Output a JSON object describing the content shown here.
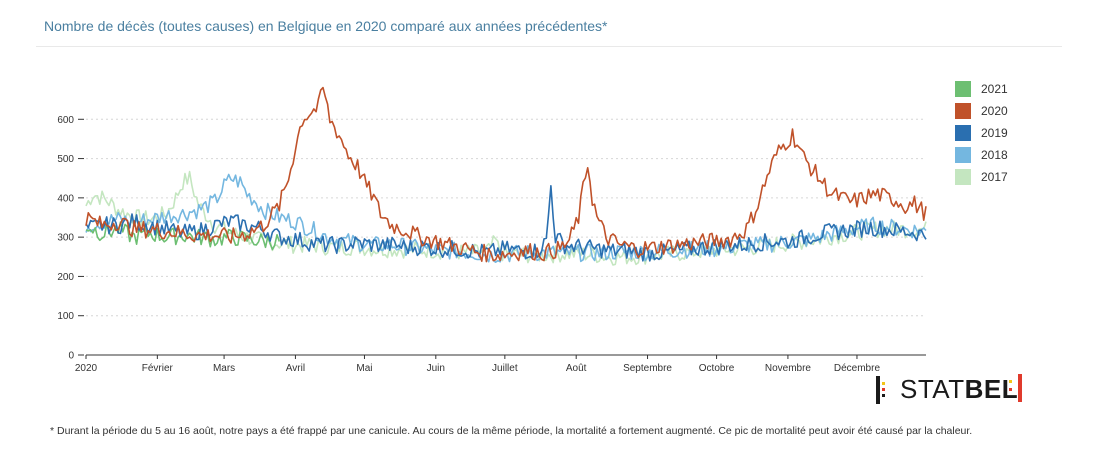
{
  "title": "Nombre de décès (toutes causes) en Belgique en 2020 comparé aux années précédentes*",
  "footnote": "* Durant la période du 5 au 16 août, notre pays a été frappé par une canicule. Au cours de la même période, la mortalité a fortement augmenté. Ce pic de mortalité peut avoir été causé par la chaleur.",
  "logo": {
    "light": "STAT",
    "bold": "BEL"
  },
  "chart_data": {
    "type": "line",
    "title": "Nombre de décès (toutes causes) en Belgique en 2020 comparé aux années précédentes*",
    "xlabel": "",
    "ylabel": "",
    "ylim": [
      0,
      700
    ],
    "y_ticks": [
      0,
      100,
      200,
      300,
      400,
      500,
      600
    ],
    "x_ticks": [
      {
        "label": "2020",
        "day": 0
      },
      {
        "label": "Février",
        "day": 31
      },
      {
        "label": "Mars",
        "day": 60
      },
      {
        "label": "Avril",
        "day": 91
      },
      {
        "label": "Mai",
        "day": 121
      },
      {
        "label": "Juin",
        "day": 152
      },
      {
        "label": "Juillet",
        "day": 182
      },
      {
        "label": "Août",
        "day": 213
      },
      {
        "label": "Septembre",
        "day": 244
      },
      {
        "label": "Octobre",
        "day": 274
      },
      {
        "label": "Novembre",
        "day": 305
      },
      {
        "label": "Décembre",
        "day": 335
      }
    ],
    "legend_position": "right",
    "grid": "horizontal dotted",
    "series": [
      {
        "name": "2021",
        "color": "#6dbf72",
        "points": [
          [
            0,
            330
          ],
          [
            7,
            310
          ],
          [
            14,
            320
          ],
          [
            21,
            300
          ],
          [
            28,
            310
          ],
          [
            35,
            300
          ],
          [
            42,
            305
          ],
          [
            49,
            300
          ],
          [
            56,
            295
          ],
          [
            63,
            300
          ],
          [
            70,
            295
          ],
          [
            77,
            290
          ],
          [
            84,
            290
          ]
        ]
      },
      {
        "name": "2020",
        "color": "#c0522a",
        "points": [
          [
            0,
            350
          ],
          [
            7,
            330
          ],
          [
            14,
            340
          ],
          [
            21,
            320
          ],
          [
            28,
            320
          ],
          [
            35,
            315
          ],
          [
            42,
            310
          ],
          [
            49,
            305
          ],
          [
            56,
            305
          ],
          [
            63,
            300
          ],
          [
            70,
            310
          ],
          [
            77,
            330
          ],
          [
            84,
            380
          ],
          [
            88,
            450
          ],
          [
            91,
            530
          ],
          [
            94,
            600
          ],
          [
            98,
            620
          ],
          [
            101,
            630
          ],
          [
            103,
            680
          ],
          [
            106,
            600
          ],
          [
            110,
            560
          ],
          [
            114,
            510
          ],
          [
            118,
            480
          ],
          [
            121,
            440
          ],
          [
            125,
            400
          ],
          [
            128,
            360
          ],
          [
            133,
            330
          ],
          [
            140,
            315
          ],
          [
            145,
            300
          ],
          [
            152,
            290
          ],
          [
            158,
            280
          ],
          [
            165,
            270
          ],
          [
            172,
            260
          ],
          [
            178,
            255
          ],
          [
            185,
            260
          ],
          [
            192,
            265
          ],
          [
            199,
            260
          ],
          [
            206,
            270
          ],
          [
            210,
            290
          ],
          [
            214,
            350
          ],
          [
            216,
            420
          ],
          [
            218,
            490
          ],
          [
            220,
            400
          ],
          [
            222,
            350
          ],
          [
            226,
            300
          ],
          [
            232,
            280
          ],
          [
            240,
            270
          ],
          [
            248,
            275
          ],
          [
            256,
            280
          ],
          [
            264,
            285
          ],
          [
            272,
            290
          ],
          [
            280,
            295
          ],
          [
            287,
            320
          ],
          [
            291,
            370
          ],
          [
            294,
            420
          ],
          [
            297,
            470
          ],
          [
            300,
            510
          ],
          [
            304,
            540
          ],
          [
            307,
            560
          ],
          [
            309,
            540
          ],
          [
            312,
            500
          ],
          [
            316,
            470
          ],
          [
            320,
            440
          ],
          [
            324,
            410
          ],
          [
            328,
            400
          ],
          [
            332,
            390
          ],
          [
            336,
            395
          ],
          [
            340,
            405
          ],
          [
            344,
            410
          ],
          [
            348,
            400
          ],
          [
            352,
            395
          ],
          [
            356,
            380
          ],
          [
            360,
            385
          ],
          [
            365,
            360
          ]
        ]
      },
      {
        "name": "2019",
        "color": "#2a6fb0",
        "points": [
          [
            0,
            320
          ],
          [
            7,
            330
          ],
          [
            14,
            330
          ],
          [
            21,
            340
          ],
          [
            28,
            330
          ],
          [
            35,
            320
          ],
          [
            42,
            310
          ],
          [
            49,
            315
          ],
          [
            56,
            330
          ],
          [
            63,
            340
          ],
          [
            70,
            330
          ],
          [
            77,
            320
          ],
          [
            84,
            300
          ],
          [
            91,
            295
          ],
          [
            98,
            285
          ],
          [
            105,
            280
          ],
          [
            112,
            280
          ],
          [
            119,
            285
          ],
          [
            126,
            280
          ],
          [
            133,
            280
          ],
          [
            140,
            275
          ],
          [
            147,
            275
          ],
          [
            154,
            270
          ],
          [
            161,
            270
          ],
          [
            168,
            265
          ],
          [
            175,
            260
          ],
          [
            182,
            270
          ],
          [
            189,
            265
          ],
          [
            196,
            265
          ],
          [
            200,
            290
          ],
          [
            202,
            430
          ],
          [
            204,
            300
          ],
          [
            208,
            280
          ],
          [
            215,
            275
          ],
          [
            222,
            270
          ],
          [
            229,
            265
          ],
          [
            236,
            265
          ],
          [
            243,
            260
          ],
          [
            250,
            260
          ],
          [
            257,
            265
          ],
          [
            264,
            270
          ],
          [
            271,
            275
          ],
          [
            278,
            280
          ],
          [
            285,
            280
          ],
          [
            292,
            285
          ],
          [
            299,
            290
          ],
          [
            306,
            290
          ],
          [
            313,
            300
          ],
          [
            320,
            310
          ],
          [
            327,
            315
          ],
          [
            334,
            320
          ],
          [
            341,
            325
          ],
          [
            348,
            320
          ],
          [
            355,
            315
          ],
          [
            362,
            310
          ],
          [
            365,
            305
          ]
        ]
      },
      {
        "name": "2018",
        "color": "#74b7e0",
        "points": [
          [
            0,
            330
          ],
          [
            7,
            340
          ],
          [
            14,
            345
          ],
          [
            21,
            340
          ],
          [
            28,
            345
          ],
          [
            35,
            355
          ],
          [
            42,
            360
          ],
          [
            49,
            370
          ],
          [
            56,
            390
          ],
          [
            60,
            430
          ],
          [
            63,
            450
          ],
          [
            67,
            440
          ],
          [
            70,
            410
          ],
          [
            74,
            390
          ],
          [
            77,
            370
          ],
          [
            84,
            350
          ],
          [
            91,
            340
          ],
          [
            98,
            320
          ],
          [
            105,
            300
          ],
          [
            112,
            290
          ],
          [
            119,
            285
          ],
          [
            126,
            280
          ],
          [
            133,
            280
          ],
          [
            140,
            275
          ],
          [
            147,
            270
          ],
          [
            154,
            265
          ],
          [
            161,
            265
          ],
          [
            168,
            260
          ],
          [
            175,
            255
          ],
          [
            182,
            255
          ],
          [
            189,
            260
          ],
          [
            196,
            260
          ],
          [
            203,
            260
          ],
          [
            210,
            260
          ],
          [
            217,
            260
          ],
          [
            224,
            260
          ],
          [
            231,
            262
          ],
          [
            238,
            262
          ],
          [
            245,
            262
          ],
          [
            252,
            265
          ],
          [
            259,
            268
          ],
          [
            266,
            270
          ],
          [
            273,
            270
          ],
          [
            280,
            275
          ],
          [
            287,
            280
          ],
          [
            294,
            280
          ],
          [
            301,
            285
          ],
          [
            308,
            290
          ],
          [
            315,
            295
          ],
          [
            322,
            305
          ],
          [
            329,
            315
          ],
          [
            336,
            325
          ],
          [
            343,
            330
          ],
          [
            350,
            325
          ],
          [
            357,
            320
          ],
          [
            365,
            315
          ]
        ]
      },
      {
        "name": "2017",
        "color": "#c4e6c0",
        "points": [
          [
            0,
            380
          ],
          [
            3,
            410
          ],
          [
            7,
            400
          ],
          [
            10,
            390
          ],
          [
            14,
            370
          ],
          [
            21,
            350
          ],
          [
            28,
            345
          ],
          [
            35,
            360
          ],
          [
            39,
            400
          ],
          [
            42,
            440
          ],
          [
            45,
            450
          ],
          [
            49,
            380
          ],
          [
            56,
            330
          ],
          [
            63,
            310
          ],
          [
            70,
            300
          ],
          [
            77,
            290
          ],
          [
            84,
            285
          ],
          [
            91,
            280
          ],
          [
            98,
            280
          ],
          [
            105,
            275
          ],
          [
            112,
            275
          ],
          [
            119,
            275
          ],
          [
            126,
            270
          ],
          [
            133,
            270
          ],
          [
            140,
            268
          ],
          [
            147,
            268
          ],
          [
            154,
            265
          ],
          [
            161,
            262
          ],
          [
            168,
            260
          ],
          [
            175,
            265
          ],
          [
            178,
            290
          ],
          [
            180,
            260
          ],
          [
            186,
            255
          ],
          [
            193,
            255
          ],
          [
            200,
            255
          ],
          [
            207,
            258
          ],
          [
            214,
            258
          ],
          [
            221,
            255
          ],
          [
            228,
            250
          ],
          [
            235,
            250
          ],
          [
            242,
            252
          ],
          [
            249,
            255
          ],
          [
            256,
            258
          ],
          [
            263,
            262
          ],
          [
            270,
            265
          ],
          [
            277,
            270
          ],
          [
            284,
            270
          ],
          [
            291,
            275
          ],
          [
            298,
            280
          ],
          [
            305,
            285
          ],
          [
            312,
            290
          ],
          [
            319,
            295
          ],
          [
            326,
            305
          ],
          [
            333,
            310
          ],
          [
            340,
            318
          ],
          [
            347,
            322
          ],
          [
            354,
            320
          ],
          [
            361,
            320
          ],
          [
            365,
            320
          ]
        ]
      }
    ]
  }
}
